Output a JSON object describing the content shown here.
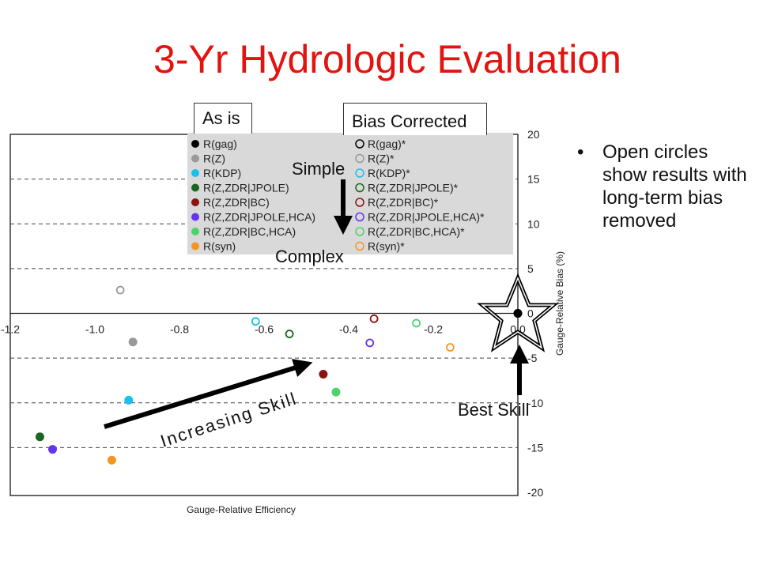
{
  "slide": {
    "title": "3-Yr Hydrologic Evaluation",
    "bullet_text": "Open circles show results with long-term bias removed",
    "label_as_is": "As is",
    "label_bias_corrected": "Bias Corrected",
    "label_simple": "Simple",
    "label_complex": "Complex",
    "label_increasing_skill": "Increasing Skill",
    "label_best_skill": "Best Skill"
  },
  "chart_data": {
    "type": "scatter",
    "xlabel": "Gauge-Relative Efficiency",
    "ylabel": "Gauge-Relative Bias (%)",
    "xlim": [
      -1.2,
      0.0
    ],
    "ylim": [
      -20,
      20
    ],
    "xticks": [
      "-1.2",
      "-1.0",
      "-0.8",
      "-0.6",
      "-0.4",
      "-0.2",
      "0.0"
    ],
    "yticks": [
      "20",
      "15",
      "10",
      "5",
      "0",
      "-5",
      "-10",
      "-15",
      "-20"
    ],
    "grid": "dashed horizontal",
    "legend_position": "top-center",
    "series": [
      {
        "name": "R(gag)",
        "color": "#000000",
        "fill": "filled",
        "x": 0.0,
        "y": 0.0
      },
      {
        "name": "R(Z)",
        "color": "#999999",
        "fill": "filled",
        "x": -0.91,
        "y": -3.2
      },
      {
        "name": "R(KDP)",
        "color": "#16c1ee",
        "fill": "filled",
        "x": -0.92,
        "y": -9.7
      },
      {
        "name": "R(Z,ZDR|JPOLE)",
        "color": "#1a6620",
        "fill": "filled",
        "x": -1.13,
        "y": -13.8
      },
      {
        "name": "R(Z,ZDR|BC)",
        "color": "#8b1410",
        "fill": "filled",
        "x": -0.46,
        "y": -6.8
      },
      {
        "name": "R(Z,ZDR|JPOLE,HCA)",
        "color": "#6633ee",
        "fill": "filled",
        "x": -1.1,
        "y": -15.2
      },
      {
        "name": "R(Z,ZDR|BC,HCA)",
        "color": "#4dd36a",
        "fill": "filled",
        "x": -0.43,
        "y": -8.8
      },
      {
        "name": "R(syn)",
        "color": "#f7961e",
        "fill": "filled",
        "x": -0.96,
        "y": -16.4
      },
      {
        "name": "R(gag)*",
        "color": "#000000",
        "fill": "open",
        "x": 0.0,
        "y": 0.0
      },
      {
        "name": "R(Z)*",
        "color": "#999999",
        "fill": "open",
        "x": -0.94,
        "y": 2.6
      },
      {
        "name": "R(KDP)*",
        "color": "#16c1ee",
        "fill": "open",
        "x": -0.62,
        "y": -0.9
      },
      {
        "name": "R(Z,ZDR|JPOLE)*",
        "color": "#1a6620",
        "fill": "open",
        "x": -0.54,
        "y": -2.3
      },
      {
        "name": "R(Z,ZDR|BC)*",
        "color": "#8b1410",
        "fill": "open",
        "x": -0.34,
        "y": -0.6
      },
      {
        "name": "R(Z,ZDR|JPOLE,HCA)*",
        "color": "#6633ee",
        "fill": "open",
        "x": -0.35,
        "y": -3.3
      },
      {
        "name": "R(Z,ZDR|BC,HCA)*",
        "color": "#4dd36a",
        "fill": "open",
        "x": -0.24,
        "y": -1.1
      },
      {
        "name": "R(syn)*",
        "color": "#f7961e",
        "fill": "open",
        "x": -0.16,
        "y": -3.8
      }
    ]
  }
}
